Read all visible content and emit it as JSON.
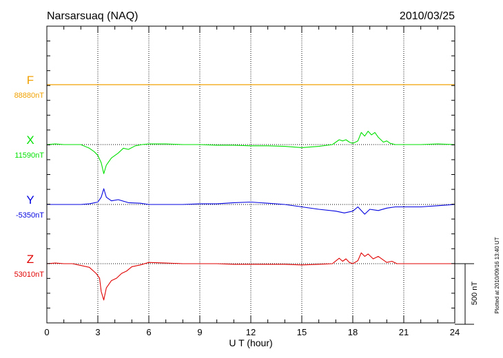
{
  "chart_data": {
    "type": "line",
    "title": "Narsarsuaq (NAQ)",
    "date": "2010/03/25",
    "xlabel": "U T (hour)",
    "xlim": [
      0,
      24
    ],
    "x_ticks": [
      0,
      3,
      6,
      9,
      12,
      15,
      18,
      21,
      24
    ],
    "grid": true,
    "scale_bar_label": "500 nT",
    "scale_bar_nT": 500,
    "plotted_note": "Plotted at 2010/09/16 13:40 UT",
    "series": [
      {
        "name": "F",
        "baseline_label": "88880nT",
        "color": "#f0a000",
        "baseline_nT": 88880,
        "x": [
          0,
          6,
          12,
          18,
          24
        ],
        "y": [
          0,
          0,
          0,
          0,
          0
        ]
      },
      {
        "name": "X",
        "baseline_label": "11590nT",
        "color": "#00e000",
        "baseline_nT": 11590,
        "x": [
          0,
          0.5,
          1,
          1.5,
          2,
          2.5,
          2.8,
          3,
          3.2,
          3.35,
          3.5,
          3.8,
          4.2,
          4.5,
          4.8,
          5.2,
          5.6,
          6,
          7,
          8,
          9,
          10,
          11,
          12,
          13,
          14,
          15,
          16,
          16.8,
          17.2,
          17.4,
          17.6,
          17.8,
          18,
          18.3,
          18.5,
          18.7,
          18.9,
          19.1,
          19.3,
          19.5,
          19.8,
          20,
          20.2,
          20.5,
          21,
          22,
          23,
          24
        ],
        "y": [
          0,
          5,
          0,
          0,
          0,
          -30,
          -60,
          -90,
          -150,
          -240,
          -170,
          -110,
          -70,
          -30,
          -40,
          -10,
          0,
          5,
          5,
          0,
          0,
          -5,
          -5,
          -10,
          -10,
          -15,
          -25,
          -15,
          0,
          40,
          30,
          40,
          20,
          10,
          30,
          100,
          70,
          110,
          80,
          100,
          60,
          20,
          30,
          10,
          0,
          0,
          0,
          5,
          0
        ]
      },
      {
        "name": "Y",
        "baseline_label": "-5350nT",
        "color": "#0000e0",
        "baseline_nT": -5350,
        "x": [
          0,
          1,
          2,
          2.5,
          3,
          3.2,
          3.35,
          3.5,
          3.8,
          4.2,
          4.8,
          5.5,
          6,
          7,
          8,
          9,
          10,
          11,
          12,
          13,
          14,
          15,
          16,
          17,
          17.5,
          18,
          18.3,
          18.7,
          19,
          19.5,
          20,
          20.5,
          21,
          22,
          23,
          24
        ],
        "y": [
          0,
          0,
          0,
          5,
          20,
          60,
          130,
          60,
          30,
          40,
          15,
          10,
          0,
          0,
          0,
          5,
          5,
          15,
          20,
          10,
          0,
          -20,
          -40,
          -55,
          -70,
          -55,
          -20,
          -80,
          -40,
          -50,
          -30,
          -20,
          -20,
          -20,
          -10,
          0
        ]
      },
      {
        "name": "Z",
        "baseline_label": "53010nT",
        "color": "#e00000",
        "baseline_nT": 53010,
        "x": [
          0,
          0.5,
          1,
          1.5,
          2,
          2.5,
          2.9,
          3.1,
          3.2,
          3.35,
          3.5,
          3.8,
          4.1,
          4.4,
          4.7,
          5,
          5.5,
          6,
          7,
          8,
          9,
          10,
          11,
          12,
          13,
          14,
          15,
          16,
          16.8,
          17.2,
          17.4,
          17.6,
          17.8,
          18,
          18.3,
          18.5,
          18.7,
          18.9,
          19.2,
          19.5,
          20,
          20.3,
          20.6,
          21,
          22,
          23,
          24
        ],
        "y": [
          0,
          5,
          0,
          0,
          -15,
          -30,
          -80,
          -120,
          -230,
          -300,
          -200,
          -140,
          -120,
          -80,
          -60,
          -25,
          -10,
          10,
          5,
          0,
          0,
          0,
          -5,
          -5,
          -5,
          -5,
          -10,
          -5,
          0,
          45,
          20,
          40,
          10,
          0,
          25,
          90,
          60,
          80,
          40,
          60,
          10,
          20,
          0,
          0,
          0,
          0,
          0
        ]
      }
    ]
  }
}
